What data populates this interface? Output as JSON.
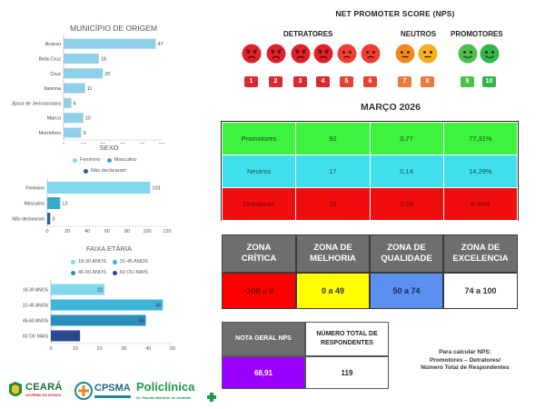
{
  "nps": {
    "title": "NET PROMOTER SCORE (NPS)",
    "groups": {
      "detratores": "DETRATORES",
      "neutros": "NEUTROS",
      "promotores": "PROMOTORES"
    },
    "scores": [
      "1",
      "2",
      "3",
      "4",
      "5",
      "6",
      "7",
      "8",
      "9",
      "10"
    ],
    "colors": {
      "detrator": "#e0212a",
      "neutro": "#f08a20",
      "promotor": "#2fb84a"
    }
  },
  "month": "MARÇO 2026",
  "score_table": {
    "rows": [
      {
        "label": "Promotores",
        "count": "92",
        "ratio": "0,77",
        "pct": "77,31%"
      },
      {
        "label": "Neutros",
        "count": "17",
        "ratio": "0,14",
        "pct": "14,29%"
      },
      {
        "label": "Detratores",
        "count": "10",
        "ratio": "0,08",
        "pct": "8,40%"
      }
    ]
  },
  "zones": {
    "critica": {
      "label1": "ZONA",
      "label2": "CRÍTICA",
      "range": "-100 a 0",
      "color": "#ff0000"
    },
    "melhoria": {
      "label1": "ZONA DE",
      "label2": "MELHORIA",
      "range": "0 a 49",
      "color": "#ffff00"
    },
    "qualidade": {
      "label1": "ZONA DE",
      "label2": "QUALIDADE",
      "range": "50 a 74",
      "color": "#5b8ff0"
    },
    "excelencia": {
      "label1": "ZONA DE",
      "label2": "EXCELENCIA",
      "range": "74 a 100",
      "color": "#ffffff"
    }
  },
  "final": {
    "nota_label": "NOTA GERAL NPS",
    "total_label1": "NÚMERO TOTAL DE",
    "total_label2": "RESPONDENTES",
    "nota_value": "68,91",
    "total_value": "119",
    "nota_color": "#9b00ff"
  },
  "note": {
    "line1": "Para calcular NPS:",
    "line2": "Promotores – Detratores/",
    "line3": "Número Total de Respondentes"
  },
  "chart_data": [
    {
      "type": "bar",
      "orientation": "horizontal",
      "title": "MUNICÍPIO DE ORIGEM",
      "categories": [
        "Acaraú",
        "Bela Cruz",
        "Cruz",
        "Itarema",
        "Jijoca de Jericoacoara",
        "Marco",
        "Morrinhos"
      ],
      "values": [
        47,
        18,
        20,
        11,
        4,
        10,
        9
      ],
      "xlim": [
        0,
        50
      ],
      "ticks": [
        "0",
        "10",
        "20",
        "30",
        "40",
        "50"
      ],
      "color": "#8fd0e8"
    },
    {
      "type": "bar",
      "orientation": "horizontal",
      "title": "SEXO",
      "legend": [
        "Feminino",
        "Masculino",
        "Não declararam"
      ],
      "legend_colors": [
        "#7fd8ec",
        "#3aa8c8",
        "#2b5f9e"
      ],
      "categories": [
        "Feminino",
        "Masculino",
        "Não declararam"
      ],
      "values": [
        103,
        13,
        3
      ],
      "xlim": [
        0,
        120
      ],
      "ticks": [
        "0",
        "20",
        "40",
        "60",
        "80",
        "100",
        "120"
      ],
      "colors": [
        "#7fd8ec",
        "#3aa8c8",
        "#2b5f9e"
      ]
    },
    {
      "type": "bar",
      "orientation": "horizontal",
      "title": "FAIXA ETÁRIA",
      "legend": [
        "18-30 ANOS",
        "31-45 ANOS",
        "46-60 ANOS",
        "60 OU MAIS"
      ],
      "legend_colors": [
        "#7fd8ec",
        "#3fb4d8",
        "#2b8fbe",
        "#2b4a8e"
      ],
      "categories": [
        "18-30 ANOS",
        "31-45 ANOS",
        "46-60 ANOS",
        "60 OU MAIS"
      ],
      "values": [
        22,
        46,
        39,
        12
      ],
      "xlim": [
        0,
        50
      ],
      "ticks": [
        "0",
        "10",
        "20",
        "30",
        "40",
        "50"
      ],
      "colors": [
        "#7fd8ec",
        "#3fb4d8",
        "#2b8fbe",
        "#2b4a8e"
      ]
    }
  ],
  "logos": {
    "ceara": "CEARÁ",
    "ceara_sub": "GOVERNO DO ESTADO",
    "cpsma": "CPSMA",
    "policlinica": "Policlínica",
    "policlinica_sub": "Dr. Plácido Marinho de Andrade"
  }
}
